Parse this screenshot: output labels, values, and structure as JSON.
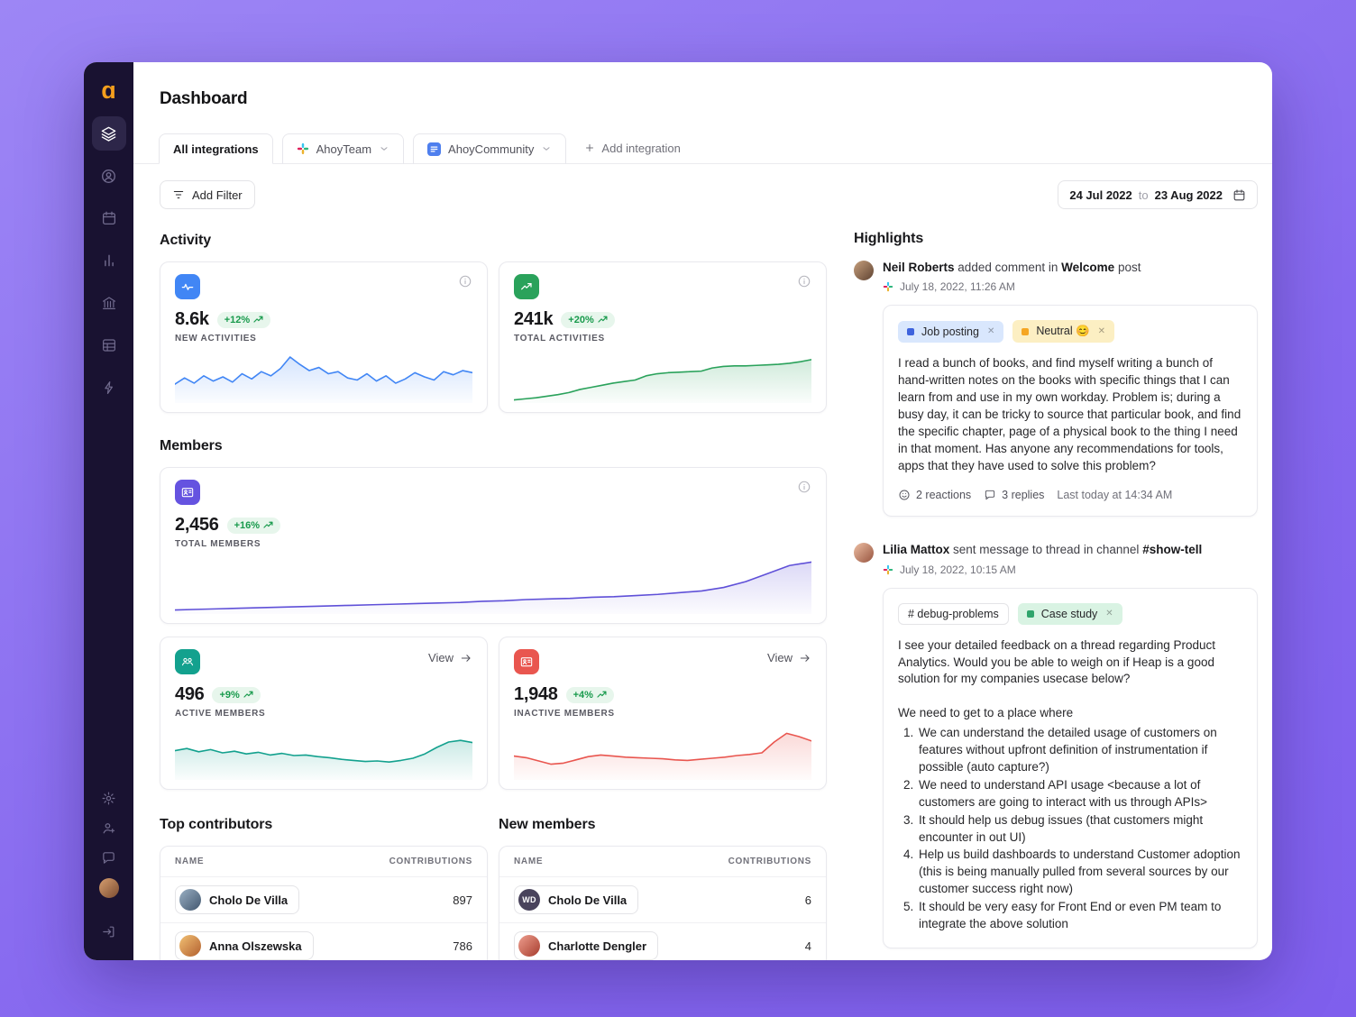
{
  "app": {
    "title": "Dashboard"
  },
  "colors": {
    "background": "#8a6cf0",
    "sidebar": "#191231",
    "positive": "#189a4c",
    "blue": "#4186f5",
    "green": "#2aa25b",
    "purple": "#6553e0",
    "teal": "#13a18e",
    "red": "#e9564f"
  },
  "sidebar": {
    "icons": [
      "ahoy-logo",
      "layers-icon",
      "user-circle-icon",
      "calendar-icon",
      "bar-chart-icon",
      "bank-icon",
      "table-icon",
      "lightning-icon",
      "gear-icon",
      "user-plus-icon",
      "chat-icon",
      "user-avatar",
      "logout-icon"
    ]
  },
  "tabs": {
    "all": "All integrations",
    "team": "AhoyTeam",
    "community": "AhoyCommunity",
    "add": "Add integration"
  },
  "filter": {
    "add_filter": "Add Filter"
  },
  "date_range": {
    "start": "24 Jul 2022",
    "sep": "to",
    "end": "23 Aug 2022"
  },
  "activity": {
    "heading": "Activity",
    "new": {
      "value": "8.6k",
      "delta": "+12%",
      "label": "NEW ACTIVITIES"
    },
    "total": {
      "value": "241k",
      "delta": "+20%",
      "label": "TOTAL ACTIVITIES"
    }
  },
  "members": {
    "heading": "Members",
    "total": {
      "value": "2,456",
      "delta": "+16%",
      "label": "TOTAL MEMBERS"
    },
    "active": {
      "value": "496",
      "delta": "+9%",
      "label": "ACTIVE MEMBERS",
      "view": "View"
    },
    "inactive": {
      "value": "1,948",
      "delta": "+4%",
      "label": "INACTIVE MEMBERS",
      "view": "View"
    }
  },
  "contributors": {
    "heading": "Top contributors",
    "columns": {
      "name": "NAME",
      "value": "CONTRIBUTIONS"
    },
    "rows": [
      {
        "name": "Cholo De Villa",
        "value": 897
      },
      {
        "name": "Anna Olszewska",
        "value": 786
      }
    ]
  },
  "new_members": {
    "heading": "New members",
    "columns": {
      "name": "NAME",
      "value": "CONTRIBUTIONS"
    },
    "rows": [
      {
        "name": "Cholo De Villa",
        "value": 6,
        "initials": "WD"
      },
      {
        "name": "Charlotte Dengler",
        "value": 4
      }
    ]
  },
  "highlights": {
    "heading": "Highlights",
    "items": [
      {
        "author": "Neil Roberts",
        "action": "added comment in",
        "target": "Welcome",
        "suffix": "post",
        "timestamp": "July 18, 2022, 11:26 AM",
        "tags": [
          {
            "label": "Job posting",
            "color": "#3e63dd"
          },
          {
            "label": "Neutral 😊",
            "color": "#f5a623"
          }
        ],
        "body": "I read a bunch of books, and find myself writing a bunch of hand-written notes on the books with specific things that I can learn from and use in my own workday. Problem is; during a busy day, it can be tricky to source that particular book, and find the specific chapter, page of a physical book to the thing I need in that moment. Has anyone any recommendations for tools, apps that they have used to solve this problem?",
        "reactions": "2 reactions",
        "replies": "3 replies",
        "last_activity": "Last today at 14:34 AM"
      },
      {
        "author": "Lilia Mattox",
        "action": "sent message to thread in channel",
        "target": "#show-tell",
        "timestamp": "July 18, 2022, 10:15 AM",
        "tags": [
          {
            "label": "# debug-problems"
          },
          {
            "label": "Case study",
            "color": "#30a46c"
          }
        ],
        "body": "I see your detailed feedback on a thread regarding Product Analytics. Would you be able to weigh on if Heap is a good solution for my companies usecase below?",
        "body2": "We need to get to a place where",
        "list": [
          "We can understand the detailed usage of customers on features without upfront definition of instrumentation if possible (auto capture?)",
          "We need to understand API usage <because a lot of customers are going to interact with us through APIs>",
          "It should help us debug issues (that customers might encounter in out UI)",
          "Help us build dashboards to understand Customer adoption (this is being manually pulled from several sources by our customer success right now)",
          "It should be very easy for Front End or even PM team to integrate the above solution"
        ]
      }
    ]
  },
  "chart_data": {
    "new_activities": {
      "type": "area",
      "label": "New activities sparkline",
      "color": "#4186f5",
      "points": [
        36,
        48,
        38,
        52,
        42,
        50,
        40,
        56,
        46,
        60,
        52,
        66,
        88,
        74,
        62,
        68,
        56,
        60,
        48,
        44,
        56,
        42,
        52,
        38,
        46,
        58,
        50,
        44,
        60,
        54,
        62,
        58
      ]
    },
    "total_activities": {
      "type": "area",
      "label": "Total activities sparkline",
      "color": "#2aa25b",
      "points": [
        6,
        8,
        10,
        13,
        16,
        20,
        26,
        30,
        34,
        38,
        41,
        44,
        52,
        56,
        58,
        59,
        60,
        61,
        67,
        70,
        71,
        71,
        72,
        73,
        74,
        76,
        79,
        83
      ]
    },
    "total_members": {
      "type": "area",
      "label": "Total members sparkline",
      "color": "#5f50d8",
      "points": [
        7,
        8,
        9,
        10,
        11,
        12,
        13,
        14,
        15,
        16,
        17,
        18,
        19,
        20,
        22,
        23,
        25,
        26,
        27,
        29,
        30,
        32,
        34,
        37,
        40,
        46,
        56,
        70,
        84,
        90
      ]
    },
    "active_members": {
      "type": "area",
      "label": "Active members sparkline",
      "color": "#13a18e",
      "points": [
        54,
        58,
        52,
        56,
        50,
        53,
        48,
        51,
        46,
        49,
        45,
        46,
        43,
        41,
        38,
        36,
        34,
        35,
        33,
        36,
        40,
        48,
        60,
        70,
        73,
        69
      ]
    },
    "inactive_members": {
      "type": "area",
      "label": "Inactive members sparkline",
      "color": "#e9564f",
      "points": [
        44,
        41,
        35,
        29,
        31,
        37,
        43,
        46,
        44,
        42,
        41,
        40,
        39,
        37,
        36,
        38,
        40,
        42,
        45,
        47,
        50,
        70,
        86,
        80,
        72
      ]
    }
  }
}
